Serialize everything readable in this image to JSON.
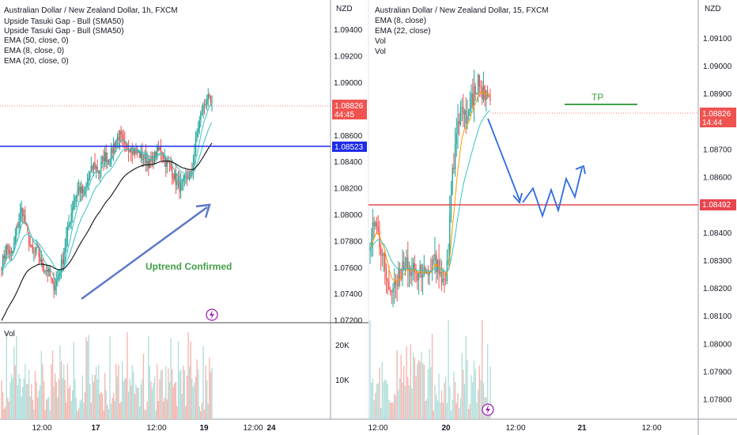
{
  "colors": {
    "up": "#26a69a",
    "down": "#ef5350",
    "hline_blue": "#1e2be8",
    "hline_red": "#e8454f",
    "arrow": "#5b78c9",
    "path_blue": "#2d6be0",
    "tp_green": "#43a047",
    "ema_teal": "#37c3c0",
    "ema_orange": "#ff9800",
    "ema_black": "#111111",
    "price_badge": "#ef5350",
    "vol_up": "#b2dfdb",
    "vol_down": "#f5b7b1"
  },
  "left": {
    "title": "Australian Dollar / New Zealand Dollar, 1h, FXCM",
    "indicators": [
      "Upside Tasuki Gap - Bull (SMA50)",
      "Upside Tasuki Gap - Bull (SMA50)",
      "EMA (50, close, 0)",
      "EMA (8, close, 0)",
      "EMA (20, close, 0)"
    ],
    "currency": "NZD",
    "y_ticks": [
      "1.09400",
      "1.09200",
      "1.09000",
      "1.08600",
      "1.08400",
      "1.08200",
      "1.08000",
      "1.07800",
      "1.07600",
      "1.07400",
      "1.07200"
    ],
    "price_badge": "1.08826",
    "countdown": "44:45",
    "blue_level": "1.08523",
    "annotation": "Uptrend Confirmed",
    "vol_label": "Vol",
    "vol_ticks": [
      "20K",
      "10K"
    ],
    "x_ticks": [
      "12:00",
      "17",
      "12:00",
      "19",
      "12:00",
      "24"
    ]
  },
  "right": {
    "title": "Australian Dollar / New Zealand Dollar, 15, FXCM",
    "indicators": [
      "EMA (8, close)",
      "EMA (22, close)",
      "Vol",
      "Vol"
    ],
    "currency": "NZD",
    "y_ticks": [
      "1.09100",
      "1.09000",
      "1.08900",
      "1.08700",
      "1.08600",
      "1.08400",
      "1.08300",
      "1.08200",
      "1.08100",
      "1.08000",
      "1.07900",
      "1.07800"
    ],
    "price_badge": "1.08826",
    "countdown": "14:44",
    "red_level": "1.08492",
    "tp_label": "TP",
    "x_ticks": [
      "12:00",
      "20",
      "12:00",
      "21",
      "12:00"
    ]
  },
  "chart_data": [
    {
      "type": "candlestick",
      "title": "Australian Dollar / New Zealand Dollar, 1h, FXCM",
      "ylabel": "NZD",
      "ylim": [
        1.0715,
        1.0955
      ],
      "close_path": [
        1.0762,
        1.0775,
        1.0768,
        1.079,
        1.0805,
        1.0785,
        1.077,
        1.0772,
        1.076,
        1.0758,
        1.0745,
        1.0752,
        1.0768,
        1.079,
        1.081,
        1.082,
        1.0815,
        1.0828,
        1.0838,
        1.0832,
        1.0845,
        1.084,
        1.0855,
        1.086,
        1.085,
        1.0852,
        1.0848,
        1.0845,
        1.0842,
        1.0838,
        1.0845,
        1.085,
        1.084,
        1.0835,
        1.0825,
        1.082,
        1.0828,
        1.083,
        1.086,
        1.0878,
        1.0888,
        1.0882
      ],
      "horizontal_level": 1.08523,
      "last_price": 1.08826,
      "volume_ticks": [
        "10K",
        "20K"
      ],
      "x_ticks": [
        "12:00",
        "17",
        "12:00",
        "19",
        "12:00",
        "24"
      ]
    },
    {
      "type": "candlestick",
      "title": "Australian Dollar / New Zealand Dollar, 15, FXCM",
      "ylabel": "NZD",
      "ylim": [
        1.0772,
        1.0918
      ],
      "close_path": [
        1.0838,
        1.0843,
        1.084,
        1.0832,
        1.0826,
        1.082,
        1.0818,
        1.0822,
        1.0826,
        1.083,
        1.0828,
        1.0826,
        1.0822,
        1.0826,
        1.0828,
        1.0824,
        1.083,
        1.0828,
        1.0826,
        1.0822,
        1.0828,
        1.0856,
        1.0872,
        1.088,
        1.0884,
        1.0882,
        1.0886,
        1.089,
        1.0894,
        1.089,
        1.0888,
        1.0884
      ],
      "horizontal_level": 1.08492,
      "last_price": 1.08826,
      "x_ticks": [
        "12:00",
        "20",
        "12:00",
        "21",
        "12:00"
      ]
    }
  ]
}
